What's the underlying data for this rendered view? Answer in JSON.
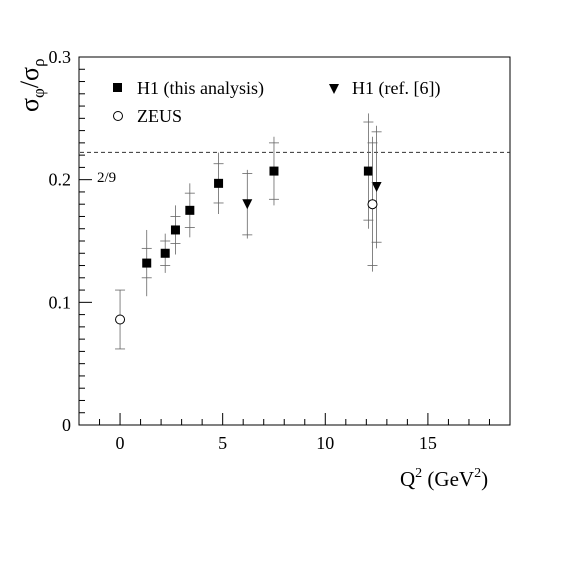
{
  "chart_data": {
    "type": "scatter",
    "title": "",
    "ylabel": {
      "base": "σ",
      "num_sub": "φ",
      "slash": "/",
      "den": "σ",
      "den_sub": "ρ"
    },
    "xlabel": {
      "q": "Q",
      "q_sup": "2",
      "unit_open": " (GeV",
      "unit_sup": "2",
      "unit_close": ")"
    },
    "xlim": [
      -2,
      19
    ],
    "ylim": [
      0,
      0.3
    ],
    "x_ticks": [
      {
        "value": 0,
        "label": "0"
      },
      {
        "value": 5,
        "label": "5"
      },
      {
        "value": 10,
        "label": "10"
      },
      {
        "value": 15,
        "label": "15"
      }
    ],
    "y_ticks": [
      {
        "value": 0,
        "label": "0"
      },
      {
        "value": 0.1,
        "label": "0.1"
      },
      {
        "value": 0.2,
        "label": "0.2"
      },
      {
        "value": 0.3,
        "label": "0.3"
      }
    ],
    "reference_line": {
      "value": 0.2222,
      "label": "2/9",
      "style": "dashed"
    },
    "legend": {
      "placement": "top-left",
      "entries": [
        {
          "series": "h1_this",
          "label": "H1 (this analysis)",
          "marker": "filled-square"
        },
        {
          "series": "h1_ref",
          "label": "H1 (ref. [6])",
          "marker": "filled-triangle-down"
        },
        {
          "series": "zeus",
          "label": "ZEUS",
          "marker": "open-circle"
        }
      ]
    },
    "series": [
      {
        "name": "H1 (this analysis)",
        "key": "h1_this",
        "marker": "filled-square",
        "points": [
          {
            "x": 1.3,
            "y": 0.132,
            "err_stat": 0.012,
            "err_tot": 0.027
          },
          {
            "x": 2.2,
            "y": 0.14,
            "err_stat": 0.01,
            "err_tot": 0.016
          },
          {
            "x": 2.7,
            "y": 0.159,
            "err_stat": 0.011,
            "err_tot": 0.02
          },
          {
            "x": 3.4,
            "y": 0.175,
            "err_stat": 0.014,
            "err_tot": 0.022
          },
          {
            "x": 4.8,
            "y": 0.197,
            "err_stat": 0.016,
            "err_tot": 0.025
          },
          {
            "x": 7.5,
            "y": 0.207,
            "err_stat": 0.023,
            "err_tot": 0.028
          },
          {
            "x": 12.1,
            "y": 0.207,
            "err_stat": 0.04,
            "err_tot": 0.047
          }
        ]
      },
      {
        "name": "H1 (ref. [6])",
        "key": "h1_ref",
        "marker": "filled-triangle-down",
        "points": [
          {
            "x": 6.2,
            "y": 0.18,
            "err_stat": 0.025,
            "err_tot": 0.028
          },
          {
            "x": 12.5,
            "y": 0.194,
            "err_stat": 0.045,
            "err_tot": 0.05
          }
        ]
      },
      {
        "name": "ZEUS",
        "key": "zeus",
        "marker": "open-circle",
        "points": [
          {
            "x": 0.0,
            "y": 0.086,
            "err_stat": 0.024,
            "err_tot": 0.024
          },
          {
            "x": 12.3,
            "y": 0.18,
            "err_stat": 0.05,
            "err_tot": 0.055
          }
        ]
      }
    ]
  }
}
